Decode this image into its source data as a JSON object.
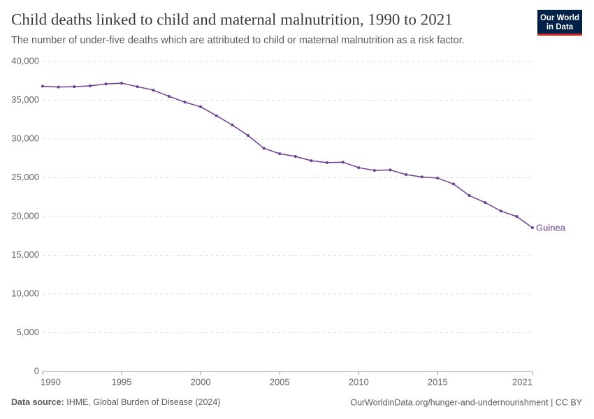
{
  "chart_data": {
    "type": "line",
    "title": "Child deaths linked to child and maternal malnutrition, 1990 to 2021",
    "subtitle": "The number of under-five deaths which are attributed to child or maternal malnutrition as a risk factor.",
    "logo": [
      "Our World",
      "in Data"
    ],
    "source_label": "Data source:",
    "source": "IHME, Global Burden of Disease (2024)",
    "footer_right": "OurWorldinData.org/hunger-and-undernourishment | CC BY",
    "x": [
      1990,
      1991,
      1992,
      1993,
      1994,
      1995,
      1996,
      1997,
      1998,
      1999,
      2000,
      2001,
      2002,
      2003,
      2004,
      2005,
      2006,
      2007,
      2008,
      2009,
      2010,
      2011,
      2012,
      2013,
      2014,
      2015,
      2016,
      2017,
      2018,
      2019,
      2020,
      2021
    ],
    "series": [
      {
        "name": "Guinea",
        "color": "#6d3e91",
        "values": [
          36800,
          36700,
          36750,
          36850,
          37100,
          37200,
          36750,
          36300,
          35500,
          34750,
          34150,
          33000,
          31800,
          30450,
          28800,
          28100,
          27750,
          27200,
          26950,
          27000,
          26300,
          25950,
          26000,
          25400,
          25100,
          24950,
          24200,
          22700,
          21800,
          20700,
          20000,
          18550
        ]
      }
    ],
    "xlim": [
      1990,
      2021
    ],
    "xticks": [
      1990,
      1995,
      2000,
      2005,
      2010,
      2015,
      2021
    ],
    "ylim": [
      0,
      40000
    ],
    "yticks": [
      0,
      {
        "value": 5000,
        "label": "5,000"
      },
      {
        "value": 10000,
        "label": "10,000"
      },
      {
        "value": 15000,
        "label": "15,000"
      },
      {
        "value": 20000,
        "label": "20,000"
      },
      {
        "value": 25000,
        "label": "25,000"
      },
      {
        "value": 30000,
        "label": "30,000"
      },
      {
        "value": 35000,
        "label": "35,000"
      },
      {
        "value": 40000,
        "label": "40,000"
      }
    ],
    "grid": true
  }
}
